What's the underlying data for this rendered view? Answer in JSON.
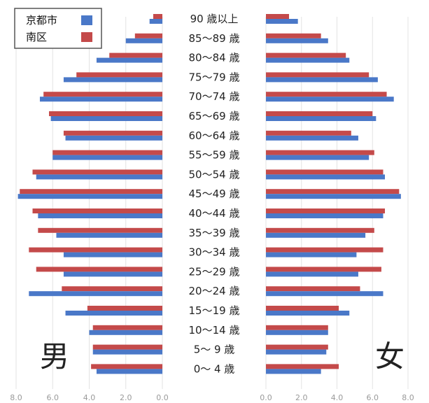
{
  "chart_data": {
    "type": "bar",
    "orientation": "horizontal",
    "layout": "population-pyramid",
    "categories": [
      "90 歳以上",
      "85～89 歳",
      "80～84 歳",
      "75～79 歳",
      "70～74 歳",
      "65～69 歳",
      "60～64 歳",
      "55～59 歳",
      "50～54 歳",
      "45～49 歳",
      "40～44 歳",
      "35～39 歳",
      "30～34 歳",
      "25～29 歳",
      "20～24 歳",
      "15～19 歳",
      "10～14 歳",
      "5～ 9 歳",
      "0～ 4 歳"
    ],
    "side_labels": {
      "left": "男",
      "right": "女"
    },
    "series": [
      {
        "name": "京都市",
        "color": "#4a78c8",
        "male": [
          0.7,
          2.0,
          3.6,
          5.4,
          6.7,
          6.1,
          5.3,
          6.0,
          6.9,
          7.9,
          6.8,
          5.8,
          5.4,
          5.4,
          7.3,
          5.3,
          4.0,
          3.8,
          3.6
        ],
        "female": [
          1.8,
          3.5,
          4.7,
          6.3,
          7.2,
          6.2,
          5.2,
          5.8,
          6.7,
          7.6,
          6.6,
          5.6,
          5.1,
          5.2,
          6.6,
          4.7,
          3.5,
          3.4,
          3.1
        ]
      },
      {
        "name": "南区",
        "color": "#c44a4a",
        "male": [
          0.5,
          1.5,
          2.9,
          4.7,
          6.5,
          6.2,
          5.4,
          6.0,
          7.1,
          7.8,
          7.1,
          6.8,
          7.3,
          6.9,
          5.5,
          4.1,
          3.8,
          3.8,
          3.9
        ],
        "female": [
          1.3,
          3.1,
          4.5,
          5.8,
          6.8,
          6.0,
          4.8,
          6.1,
          6.6,
          7.5,
          6.7,
          6.1,
          6.6,
          6.5,
          5.3,
          4.1,
          3.5,
          3.5,
          4.1
        ]
      }
    ],
    "x_left": {
      "ticks": [
        "8.0",
        "6.0",
        "4.0",
        "2.0",
        "0.0"
      ],
      "range": [
        8,
        0
      ]
    },
    "x_right": {
      "ticks": [
        "0.0",
        "2.0",
        "4.0",
        "6.0",
        "8.0"
      ],
      "range": [
        0,
        8
      ]
    },
    "grid": true,
    "legend": {
      "placement": "top-left",
      "items": [
        "京都市",
        "南区"
      ]
    }
  }
}
